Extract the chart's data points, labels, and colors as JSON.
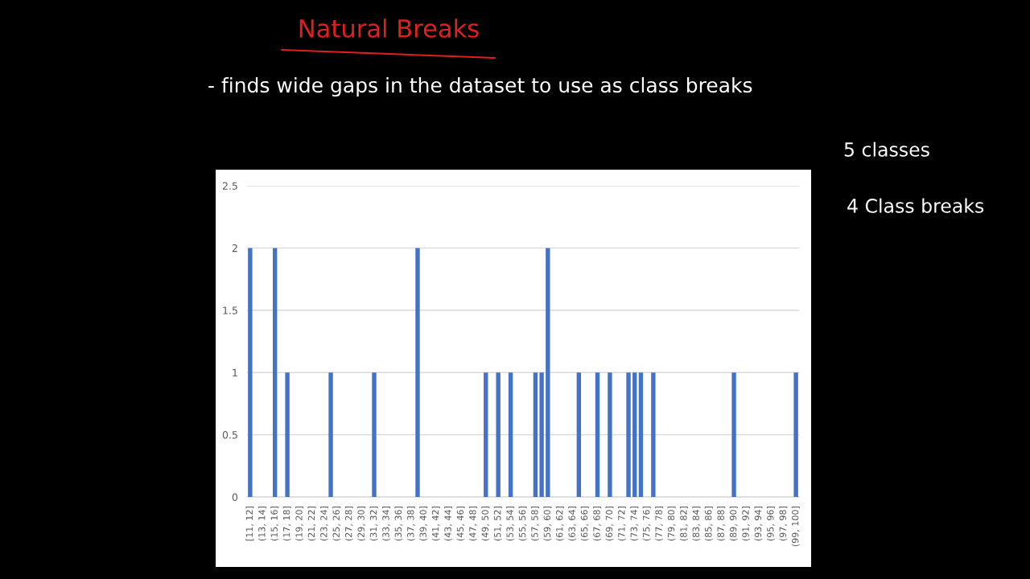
{
  "chart_data": {
    "type": "bar",
    "title": "Natural Breaks",
    "subtitle": "- finds wide gaps in the dataset to use as class breaks",
    "annotations": [
      "5 classes",
      "4 Class breaks"
    ],
    "categories": [
      "[11, 12]",
      null,
      "(13, 14]",
      null,
      "(15, 16]",
      null,
      "(17, 18]",
      null,
      "(19, 20]",
      null,
      "(21, 22]",
      null,
      "(23, 24]",
      null,
      "(25, 26]",
      null,
      "(27, 28]",
      null,
      "(29, 30]",
      null,
      "(31, 32]",
      null,
      "(33, 34]",
      null,
      "(35, 36]",
      null,
      "(37, 38]",
      null,
      "(39, 40]",
      null,
      "(41, 42]",
      null,
      "(43, 44]",
      null,
      "(45, 46]",
      null,
      "(47, 48]",
      null,
      "(49, 50]",
      null,
      "(51, 52]",
      null,
      "(53, 54]",
      null,
      "(55, 56]",
      null,
      "(57, 58]",
      null,
      "(59, 60]",
      null,
      "(61, 62]",
      null,
      "(63, 64]",
      null,
      "(65, 66]",
      null,
      "(67, 68]",
      null,
      "(69, 70]",
      null,
      "(71, 72]",
      null,
      "(73, 74]",
      null,
      "(75, 76]",
      null,
      "(77, 78]",
      null,
      "(79, 80]",
      null,
      "(81, 82]",
      null,
      "(83, 84]",
      null,
      "(85, 86]",
      null,
      "(87, 88]",
      null,
      "(89, 90]",
      null,
      "(91, 92]",
      null,
      "(93, 94]",
      null,
      "(95, 96]",
      null,
      "(97, 98]",
      null,
      "(99, 100]"
    ],
    "values": [
      2,
      0,
      0,
      0,
      2,
      0,
      1,
      0,
      0,
      0,
      0,
      0,
      0,
      1,
      0,
      0,
      0,
      0,
      0,
      0,
      1,
      0,
      0,
      0,
      0,
      0,
      0,
      2,
      0,
      0,
      0,
      0,
      0,
      0,
      0,
      0,
      0,
      0,
      1,
      0,
      1,
      0,
      1,
      0,
      0,
      0,
      1,
      1,
      2,
      0,
      0,
      0,
      0,
      1,
      0,
      0,
      1,
      0,
      1,
      0,
      0,
      1,
      1,
      1,
      0,
      1,
      0,
      0,
      0,
      0,
      0,
      0,
      0,
      0,
      0,
      0,
      0,
      0,
      1,
      0,
      0,
      0,
      0,
      0,
      0,
      0,
      0,
      0,
      1
    ],
    "color": "#4472c4",
    "ylim": [
      0,
      2.5
    ],
    "yticks": [
      0,
      0.5,
      1,
      1.5,
      2,
      2.5
    ],
    "grid": "y"
  }
}
